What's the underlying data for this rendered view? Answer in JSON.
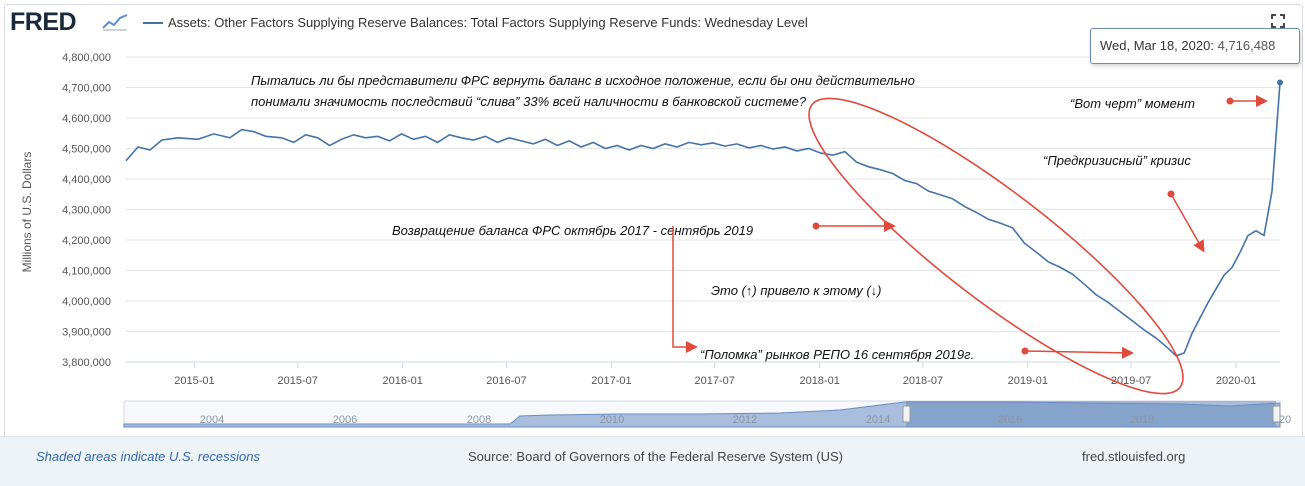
{
  "header": {
    "logo_text": "FRED",
    "series_title": "Assets: Other Factors Supplying Reserve Balances: Total Factors Supplying Reserve Funds: Wednesday Level"
  },
  "tooltip": {
    "date": "Wed, Mar 18, 2020:",
    "value": "4,716,488"
  },
  "footer": {
    "recession_note": "Shaded areas indicate U.S. recessions",
    "source": "Source: Board of Governors of the Federal Reserve System (US)",
    "site": "fred.stlouisfed.org"
  },
  "colors": {
    "line": "#4572a7",
    "annotation": "#e04a3c",
    "navigator_fill": "#a9bedc",
    "navigator_selected": "#6a8cc0"
  },
  "icons": {
    "expand": "expand-icon",
    "logo_graph": "chart-line-icon"
  },
  "chart_data": {
    "type": "line",
    "title": "Assets: Other Factors Supplying Reserve Balances: Total Factors Supplying Reserve Funds: Wednesday Level",
    "ylabel": "Millions of U.S. Dollars",
    "xlabel": "",
    "ylim": [
      3800000,
      4800000
    ],
    "xlim": [
      "2014-09-03",
      "2020-03-18"
    ],
    "y_ticks": [
      3800000,
      3900000,
      4000000,
      4100000,
      4200000,
      4300000,
      4400000,
      4500000,
      4600000,
      4700000,
      4800000
    ],
    "y_tick_labels": [
      "3,800,000",
      "3,900,000",
      "4,000,000",
      "4,100,000",
      "4,200,000",
      "4,300,000",
      "4,400,000",
      "4,500,000",
      "4,600,000",
      "4,700,000",
      "4,800,000"
    ],
    "x_ticks": [
      "2015-01-01",
      "2015-07-01",
      "2016-01-01",
      "2016-07-01",
      "2017-01-01",
      "2017-07-01",
      "2018-01-01",
      "2018-07-01",
      "2019-01-01",
      "2019-07-01",
      "2020-01-01"
    ],
    "x_tick_labels": [
      "2015-01",
      "2015-07",
      "2016-01",
      "2016-07",
      "2017-01",
      "2017-07",
      "2018-01",
      "2018-07",
      "2019-01",
      "2019-07",
      "2020-01"
    ],
    "grid": true,
    "series": [
      {
        "values": [
          [
            "2014-09-03",
            4460000
          ],
          [
            "2014-09-24",
            4505000
          ],
          [
            "2014-10-15",
            4495000
          ],
          [
            "2014-11-05",
            4528000
          ],
          [
            "2014-12-03",
            4535000
          ],
          [
            "2015-01-07",
            4530000
          ],
          [
            "2015-02-04",
            4548000
          ],
          [
            "2015-03-04",
            4535000
          ],
          [
            "2015-03-25",
            4562000
          ],
          [
            "2015-04-15",
            4555000
          ],
          [
            "2015-05-06",
            4540000
          ],
          [
            "2015-06-03",
            4535000
          ],
          [
            "2015-06-24",
            4520000
          ],
          [
            "2015-07-15",
            4545000
          ],
          [
            "2015-08-05",
            4535000
          ],
          [
            "2015-08-26",
            4510000
          ],
          [
            "2015-09-16",
            4530000
          ],
          [
            "2015-10-07",
            4545000
          ],
          [
            "2015-10-28",
            4535000
          ],
          [
            "2015-11-18",
            4540000
          ],
          [
            "2015-12-09",
            4525000
          ],
          [
            "2015-12-30",
            4548000
          ],
          [
            "2016-01-20",
            4530000
          ],
          [
            "2016-02-10",
            4540000
          ],
          [
            "2016-03-02",
            4520000
          ],
          [
            "2016-03-23",
            4545000
          ],
          [
            "2016-04-13",
            4535000
          ],
          [
            "2016-05-04",
            4528000
          ],
          [
            "2016-05-25",
            4540000
          ],
          [
            "2016-06-15",
            4520000
          ],
          [
            "2016-07-06",
            4535000
          ],
          [
            "2016-07-27",
            4525000
          ],
          [
            "2016-08-17",
            4515000
          ],
          [
            "2016-09-07",
            4530000
          ],
          [
            "2016-09-28",
            4510000
          ],
          [
            "2016-10-19",
            4525000
          ],
          [
            "2016-11-09",
            4505000
          ],
          [
            "2016-11-30",
            4520000
          ],
          [
            "2016-12-21",
            4500000
          ],
          [
            "2017-01-11",
            4510000
          ],
          [
            "2017-02-01",
            4495000
          ],
          [
            "2017-02-22",
            4510000
          ],
          [
            "2017-03-15",
            4500000
          ],
          [
            "2017-04-05",
            4515000
          ],
          [
            "2017-04-26",
            4505000
          ],
          [
            "2017-05-17",
            4520000
          ],
          [
            "2017-06-07",
            4512000
          ],
          [
            "2017-06-28",
            4518000
          ],
          [
            "2017-07-19",
            4508000
          ],
          [
            "2017-08-09",
            4515000
          ],
          [
            "2017-08-30",
            4502000
          ],
          [
            "2017-09-20",
            4510000
          ],
          [
            "2017-10-11",
            4498000
          ],
          [
            "2017-11-01",
            4505000
          ],
          [
            "2017-11-22",
            4492000
          ],
          [
            "2017-12-13",
            4500000
          ],
          [
            "2018-01-03",
            4485000
          ],
          [
            "2018-01-24",
            4478000
          ],
          [
            "2018-02-14",
            4490000
          ],
          [
            "2018-03-07",
            4455000
          ],
          [
            "2018-03-28",
            4440000
          ],
          [
            "2018-04-18",
            4430000
          ],
          [
            "2018-05-09",
            4418000
          ],
          [
            "2018-05-30",
            4395000
          ],
          [
            "2018-06-20",
            4385000
          ],
          [
            "2018-07-11",
            4360000
          ],
          [
            "2018-08-01",
            4348000
          ],
          [
            "2018-08-22",
            4335000
          ],
          [
            "2018-09-12",
            4310000
          ],
          [
            "2018-10-03",
            4290000
          ],
          [
            "2018-10-24",
            4268000
          ],
          [
            "2018-11-14",
            4255000
          ],
          [
            "2018-12-05",
            4240000
          ],
          [
            "2018-12-26",
            4190000
          ],
          [
            "2019-01-16",
            4160000
          ],
          [
            "2019-02-06",
            4128000
          ],
          [
            "2019-02-27",
            4110000
          ],
          [
            "2019-03-20",
            4088000
          ],
          [
            "2019-04-10",
            4055000
          ],
          [
            "2019-05-01",
            4020000
          ],
          [
            "2019-05-22",
            3995000
          ],
          [
            "2019-06-12",
            3965000
          ],
          [
            "2019-07-03",
            3935000
          ],
          [
            "2019-07-24",
            3905000
          ],
          [
            "2019-08-14",
            3878000
          ],
          [
            "2019-09-04",
            3845000
          ],
          [
            "2019-09-18",
            3820000
          ],
          [
            "2019-10-02",
            3830000
          ],
          [
            "2019-10-16",
            3895000
          ],
          [
            "2019-10-30",
            3945000
          ],
          [
            "2019-11-13",
            3995000
          ],
          [
            "2019-11-27",
            4040000
          ],
          [
            "2019-12-11",
            4085000
          ],
          [
            "2019-12-25",
            4110000
          ],
          [
            "2020-01-08",
            4160000
          ],
          [
            "2020-01-22",
            4215000
          ],
          [
            "2020-02-05",
            4230000
          ],
          [
            "2020-02-19",
            4215000
          ],
          [
            "2020-03-04",
            4360000
          ],
          [
            "2020-03-18",
            4716488
          ]
        ]
      }
    ],
    "annotations": [
      {
        "text": "Пытались ли бы представители ФРС вернуть баланс в исходное положение, если бы они действительно"
      },
      {
        "text": "понимали значимость последствий “слива” 33% всей наличности в банковской системе?"
      },
      {
        "text": "“Вот черт” момент"
      },
      {
        "text": "“Предкризисный” кризис"
      },
      {
        "text": "Возвращение баланса ФРС октябрь 2017 - сентябрь 2019"
      },
      {
        "text": "Это (↑) привело к этому (↓)"
      },
      {
        "text": "“Поломка” рынков РЕПО 16 сентября 2019г."
      }
    ],
    "navigator": {
      "tick_labels": [
        "2004",
        "2006",
        "2008",
        "2010",
        "2012",
        "2014",
        "2016",
        "2018",
        "20"
      ],
      "selected_range": [
        "2014-09-03",
        "2020-03-18"
      ]
    }
  }
}
